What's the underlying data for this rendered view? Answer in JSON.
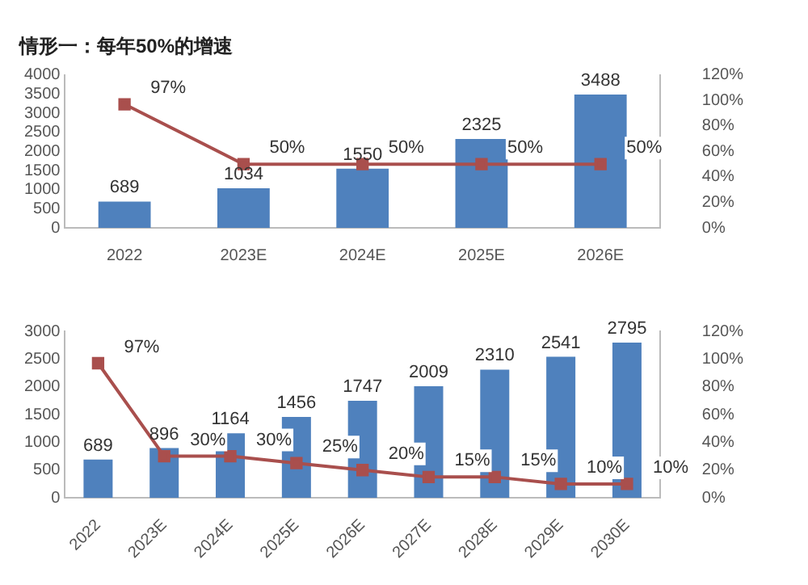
{
  "chart_data": [
    {
      "type": "bar",
      "title": "情形一：每年50%的增速",
      "categories": [
        "2022",
        "2023E",
        "2024E",
        "2025E",
        "2026E"
      ],
      "series": [
        {
          "color": "#4f81bd",
          "values": [
            689,
            1034,
            1550,
            2325,
            3488
          ],
          "value_labels": [
            "689",
            "1034",
            "1550",
            "2325",
            "3488"
          ]
        },
        {
          "type": "line",
          "axis": "y2",
          "color": "#a94f4d",
          "marker": "square",
          "values": [
            97,
            50,
            50,
            50,
            50
          ],
          "value_labels": [
            "97%",
            "50%",
            "50%",
            "50%",
            "50%"
          ]
        }
      ],
      "ylim": [
        0,
        4000
      ],
      "yticks": [
        0,
        500,
        1000,
        1500,
        2000,
        2500,
        3000,
        3500,
        4000
      ],
      "y2lim": [
        0,
        120
      ],
      "y2ticks": [
        {
          "value": 0,
          "label": "0%"
        },
        {
          "value": 20,
          "label": "20%"
        },
        {
          "value": 40,
          "label": "40%"
        },
        {
          "value": 60,
          "label": "60%"
        },
        {
          "value": 80,
          "label": "80%"
        },
        {
          "value": 100,
          "label": "100%"
        },
        {
          "value": 120,
          "label": "120%"
        }
      ],
      "grid": false,
      "legend": false
    },
    {
      "type": "bar",
      "categories": [
        "2022",
        "2023E",
        "2024E",
        "2025E",
        "2026E",
        "2027E",
        "2028E",
        "2029E",
        "2030E"
      ],
      "series": [
        {
          "color": "#4f81bd",
          "values": [
            689,
            896,
            1164,
            1456,
            1747,
            2009,
            2310,
            2541,
            2795
          ],
          "value_labels": [
            "689",
            "896",
            "1164",
            "1456",
            "1747",
            "2009",
            "2310",
            "2541",
            "2795"
          ]
        },
        {
          "type": "line",
          "axis": "y2",
          "color": "#a94f4d",
          "marker": "square",
          "values": [
            97,
            30,
            30,
            25,
            20,
            15,
            15,
            10,
            10
          ],
          "value_labels": [
            "97%",
            "30%",
            "30%",
            "25%",
            "20%",
            "15%",
            "15%",
            "10%",
            "10%"
          ]
        }
      ],
      "ylim": [
        0,
        3000
      ],
      "yticks": [
        0,
        500,
        1000,
        1500,
        2000,
        2500,
        3000
      ],
      "y2lim": [
        0,
        120
      ],
      "y2ticks": [
        {
          "value": 0,
          "label": "0%"
        },
        {
          "value": 20,
          "label": "20%"
        },
        {
          "value": 40,
          "label": "40%"
        },
        {
          "value": 60,
          "label": "60%"
        },
        {
          "value": 80,
          "label": "80%"
        },
        {
          "value": 100,
          "label": "100%"
        },
        {
          "value": 120,
          "label": "120%"
        }
      ],
      "grid": false,
      "legend": false
    }
  ]
}
